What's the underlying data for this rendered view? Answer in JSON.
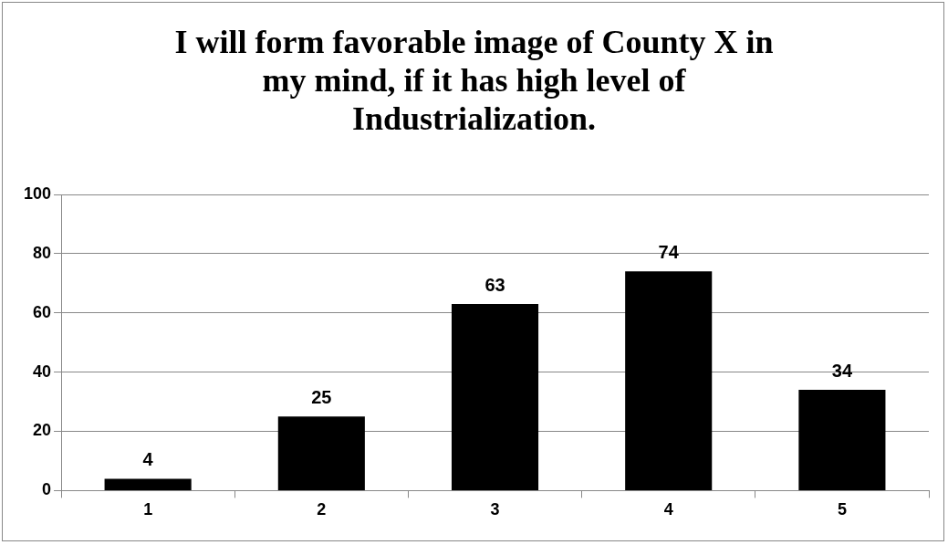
{
  "chart_data": {
    "type": "bar",
    "title": "I will form favorable image of County X in my mind, if it has high level of Industrialization.",
    "categories": [
      "1",
      "2",
      "3",
      "4",
      "5"
    ],
    "values": [
      4,
      25,
      63,
      74,
      34
    ],
    "color": "#000000",
    "ylim": [
      0,
      100
    ],
    "yticks": [
      0,
      20,
      40,
      60,
      80,
      100
    ],
    "grid": "y",
    "data_labels": true
  }
}
